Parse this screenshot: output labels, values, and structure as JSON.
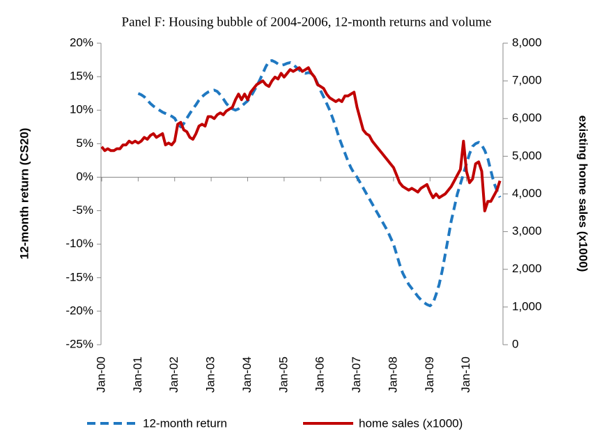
{
  "chart_data": {
    "type": "line",
    "title": "Panel F: Housing bubble of 2004-2006, 12-month returns and volume",
    "y_label": "12-month return (CS20)",
    "y2_label": "existing home sales (x1000)",
    "categories": [
      "Jan-00",
      null,
      null,
      null,
      null,
      null,
      null,
      null,
      null,
      null,
      null,
      null,
      "Jan-01",
      null,
      null,
      null,
      null,
      null,
      null,
      null,
      null,
      null,
      null,
      null,
      "Jan-02",
      null,
      null,
      null,
      null,
      null,
      null,
      null,
      null,
      null,
      null,
      null,
      "Jan-03",
      null,
      null,
      null,
      null,
      null,
      null,
      null,
      null,
      null,
      null,
      null,
      "Jan-04",
      null,
      null,
      null,
      null,
      null,
      null,
      null,
      null,
      null,
      null,
      null,
      "Jan-05",
      null,
      null,
      null,
      null,
      null,
      null,
      null,
      null,
      null,
      null,
      null,
      "Jan-06",
      null,
      null,
      null,
      null,
      null,
      null,
      null,
      null,
      null,
      null,
      null,
      "Jan-07",
      null,
      null,
      null,
      null,
      null,
      null,
      null,
      null,
      null,
      null,
      null,
      "Jan-08",
      null,
      null,
      null,
      null,
      null,
      null,
      null,
      null,
      null,
      null,
      null,
      "Jan-09",
      null,
      null,
      null,
      null,
      null,
      null,
      null,
      null,
      null,
      null,
      null,
      "Jan-10",
      null,
      null,
      null,
      null,
      null,
      null,
      null,
      null,
      null,
      null,
      null
    ],
    "series": [
      {
        "name": "12-month return",
        "color": "#1f78c1",
        "dashed": true,
        "axis": "y",
        "values": [
          null,
          null,
          null,
          null,
          null,
          null,
          null,
          null,
          null,
          null,
          null,
          null,
          12.5,
          12.3,
          12.0,
          11.5,
          11.0,
          10.6,
          10.3,
          10.0,
          9.7,
          9.5,
          9.3,
          9.1,
          8.8,
          8.0,
          7.5,
          8.0,
          8.8,
          9.5,
          10.2,
          10.8,
          11.5,
          12.0,
          12.4,
          12.7,
          12.9,
          13.0,
          12.8,
          12.3,
          11.7,
          11.0,
          10.5,
          10.2,
          10.0,
          10.2,
          10.6,
          11.0,
          11.4,
          12.0,
          12.8,
          13.6,
          14.5,
          15.5,
          16.5,
          17.3,
          17.4,
          17.2,
          16.9,
          16.7,
          16.8,
          17.0,
          17.1,
          16.8,
          16.4,
          16.0,
          15.6,
          15.5,
          15.6,
          15.5,
          15.0,
          14.0,
          12.9,
          12.0,
          11.0,
          10.0,
          8.8,
          7.5,
          6.0,
          4.8,
          3.6,
          2.4,
          1.4,
          0.6,
          0.0,
          -0.8,
          -1.6,
          -2.4,
          -3.2,
          -4.0,
          -4.8,
          -5.6,
          -6.4,
          -7.2,
          -8.0,
          -9.0,
          -10.0,
          -11.5,
          -13.0,
          -14.3,
          -15.2,
          -16.0,
          -16.6,
          -17.2,
          -17.8,
          -18.3,
          -18.7,
          -19.0,
          -19.2,
          -18.8,
          -17.5,
          -16.0,
          -14.0,
          -11.5,
          -9.0,
          -6.5,
          -4.5,
          -2.5,
          -1.0,
          0.5,
          2.0,
          3.5,
          4.6,
          5.0,
          5.2,
          4.8,
          4.0,
          2.8,
          1.0,
          -0.8,
          -2.0,
          -3.0
        ]
      },
      {
        "name": "home sales (x1000)",
        "color": "#c00000",
        "dashed": false,
        "axis": "y2",
        "values": [
          5250,
          5150,
          5200,
          5150,
          5150,
          5200,
          5200,
          5300,
          5300,
          5400,
          5350,
          5400,
          5350,
          5400,
          5500,
          5450,
          5550,
          5600,
          5500,
          5550,
          5600,
          5300,
          5350,
          5300,
          5400,
          5850,
          5900,
          5700,
          5650,
          5500,
          5450,
          5600,
          5800,
          5850,
          5800,
          6050,
          6050,
          6000,
          6100,
          6150,
          6100,
          6200,
          6250,
          6300,
          6500,
          6650,
          6500,
          6650,
          6500,
          6700,
          6800,
          6900,
          6950,
          7000,
          6900,
          6850,
          7000,
          7100,
          7050,
          7200,
          7100,
          7200,
          7300,
          7250,
          7300,
          7350,
          7250,
          7300,
          7350,
          7200,
          7100,
          6900,
          6850,
          6800,
          6650,
          6550,
          6500,
          6450,
          6500,
          6450,
          6600,
          6600,
          6650,
          6700,
          6300,
          6000,
          5700,
          5600,
          5550,
          5400,
          5300,
          5200,
          5100,
          5000,
          4900,
          4800,
          4700,
          4500,
          4300,
          4200,
          4150,
          4100,
          4150,
          4100,
          4050,
          4150,
          4200,
          4250,
          4050,
          3900,
          4000,
          3900,
          3950,
          4000,
          4100,
          4200,
          4350,
          4500,
          4650,
          5400,
          4600,
          4300,
          4400,
          4800,
          4850,
          4600,
          3550,
          3800,
          3800,
          3950,
          4100,
          4350
        ]
      }
    ],
    "ylim": [
      -25,
      20
    ],
    "yticks": [
      {
        "value": -25,
        "label": "-25%"
      },
      {
        "value": -20,
        "label": "-20%"
      },
      {
        "value": -15,
        "label": "-15%"
      },
      {
        "value": -10,
        "label": "-10%"
      },
      {
        "value": -5,
        "label": "-5%"
      },
      {
        "value": 0,
        "label": "0%"
      },
      {
        "value": 5,
        "label": "5%"
      },
      {
        "value": 10,
        "label": "10%"
      },
      {
        "value": 15,
        "label": "15%"
      },
      {
        "value": 20,
        "label": "20%"
      }
    ],
    "y2lim": [
      0,
      8000
    ],
    "y2ticks": [
      0,
      {
        "value": 1000,
        "label": "1,000"
      },
      {
        "value": 2000,
        "label": "2,000"
      },
      {
        "value": 3000,
        "label": "3,000"
      },
      {
        "value": 4000,
        "label": "4,000"
      },
      {
        "value": 5000,
        "label": "5,000"
      },
      {
        "value": 6000,
        "label": "6,000"
      },
      {
        "value": 7000,
        "label": "7,000"
      },
      {
        "value": 8000,
        "label": "8,000"
      }
    ],
    "legend": "bottom"
  }
}
